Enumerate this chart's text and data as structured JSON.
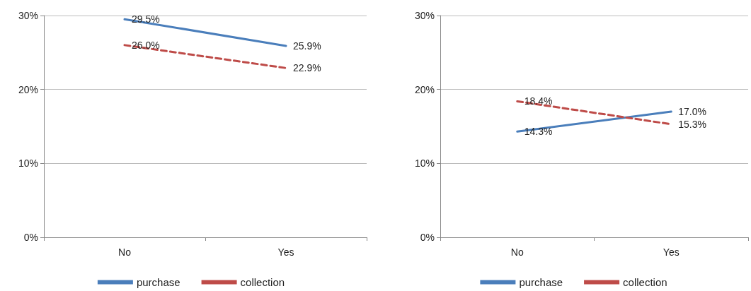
{
  "chart_data": [
    {
      "type": "line",
      "categories": [
        "No",
        "Yes"
      ],
      "ylim": [
        0,
        30
      ],
      "yticks": [
        {
          "value": 0,
          "label": "0%"
        },
        {
          "value": 10,
          "label": "10%"
        },
        {
          "value": 20,
          "label": "20%"
        },
        {
          "value": 30,
          "label": "30%"
        }
      ],
      "grid": "y",
      "legend": "bottom",
      "marker": "none",
      "series": [
        {
          "name": "purchase",
          "color": "#4a7ebb",
          "line_style": "solid",
          "values": [
            29.5,
            25.9
          ],
          "value_labels": [
            "29.5%",
            "25.9%"
          ]
        },
        {
          "name": "collection",
          "color": "#be4b48",
          "line_style": "dashed",
          "values": [
            26.0,
            22.9
          ],
          "value_labels": [
            "26.0%",
            "22.9%"
          ]
        }
      ]
    },
    {
      "type": "line",
      "categories": [
        "No",
        "Yes"
      ],
      "ylim": [
        0,
        30
      ],
      "yticks": [
        {
          "value": 0,
          "label": "0%"
        },
        {
          "value": 10,
          "label": "10%"
        },
        {
          "value": 20,
          "label": "20%"
        },
        {
          "value": 30,
          "label": "30%"
        }
      ],
      "grid": "y",
      "legend": "bottom",
      "marker": "none",
      "series": [
        {
          "name": "purchase",
          "color": "#4a7ebb",
          "line_style": "solid",
          "values": [
            14.3,
            17.0
          ],
          "value_labels": [
            "14.3%",
            "17.0%"
          ]
        },
        {
          "name": "collection",
          "color": "#be4b48",
          "line_style": "dashed",
          "values": [
            18.4,
            15.3
          ],
          "value_labels": [
            "18.4%",
            "15.3%"
          ]
        }
      ]
    }
  ]
}
